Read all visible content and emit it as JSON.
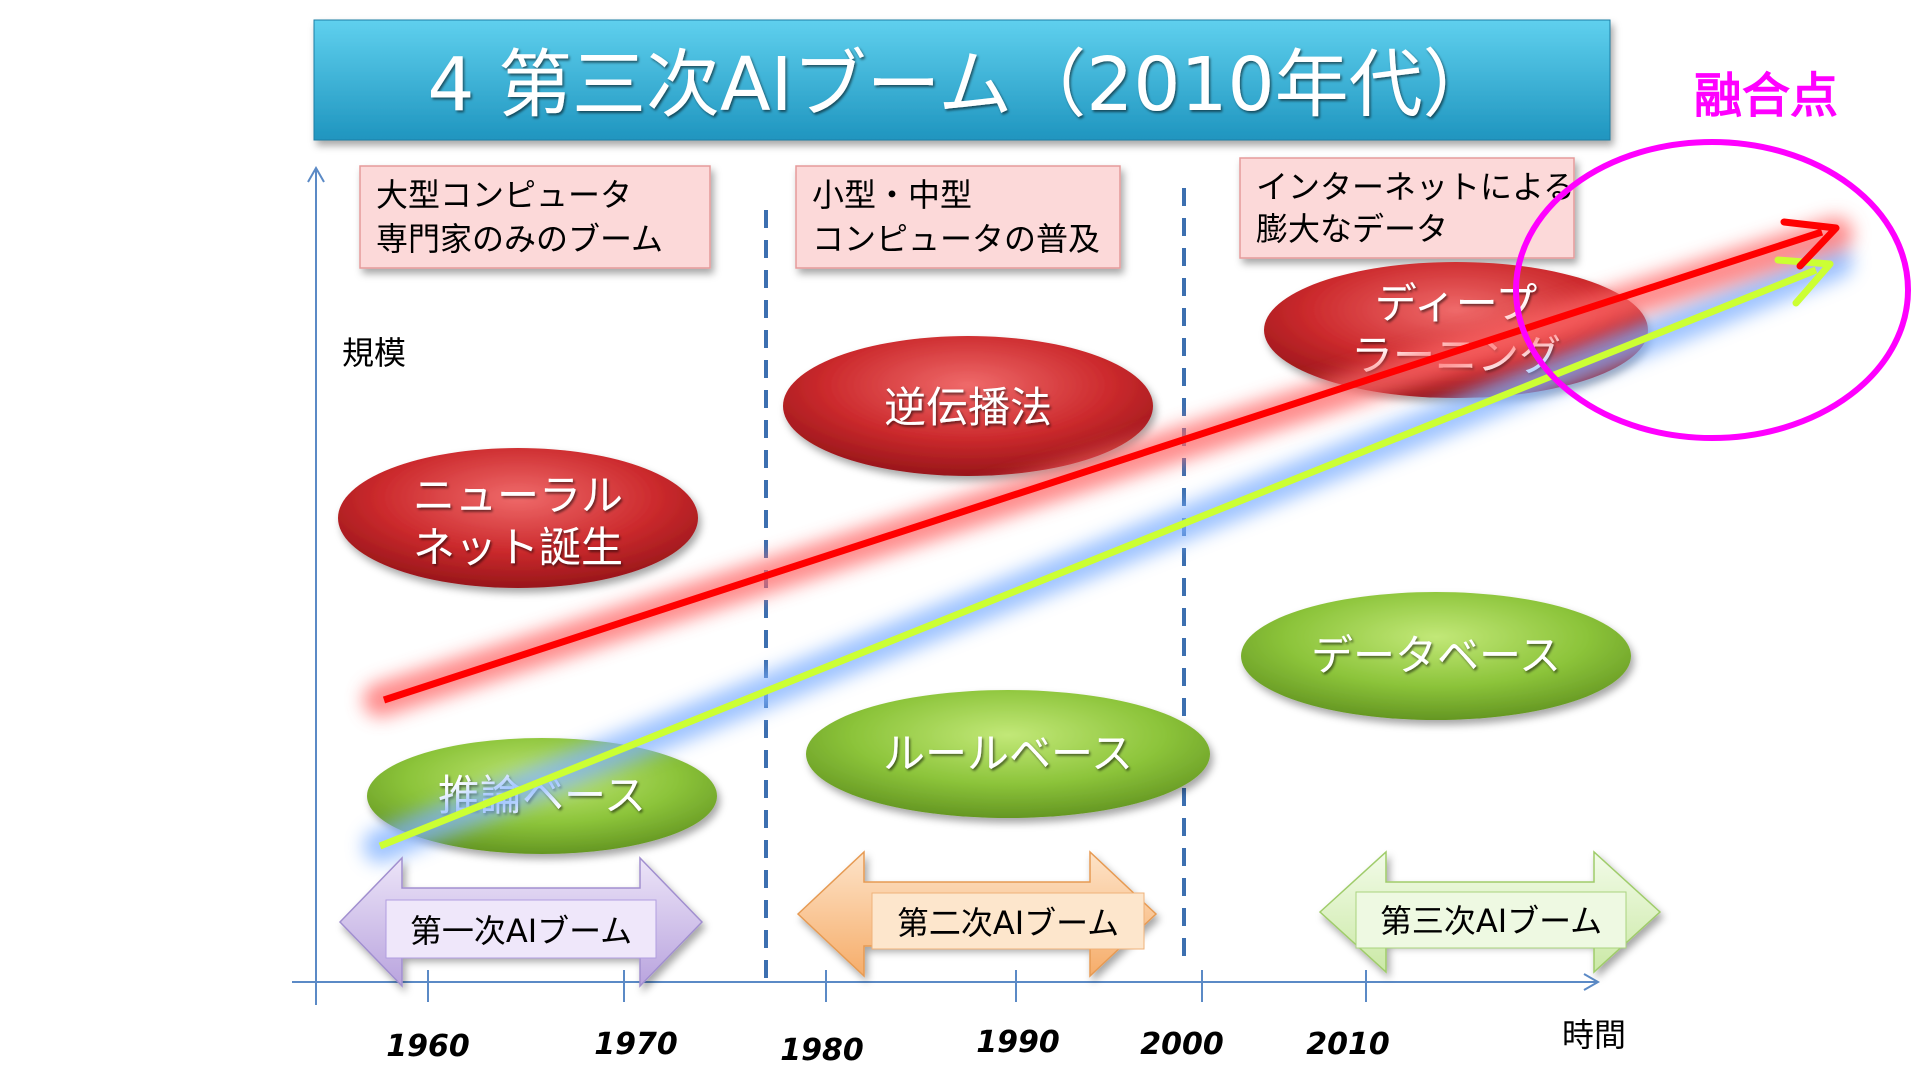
{
  "title": "4  第三次AIブーム（2010年代）",
  "axes": {
    "y_label": "規模",
    "x_label": "時間",
    "x_ticks": [
      "1960",
      "1970",
      "1980",
      "1990",
      "2000",
      "2010"
    ]
  },
  "era_notes": [
    [
      "大型コンピュータ",
      "専門家のみのブーム"
    ],
    [
      "小型・中型",
      "コンピュータの普及"
    ],
    [
      "インターネットによる",
      "膨大なデータ"
    ]
  ],
  "red_ellipses": [
    [
      "ニューラル",
      "ネット誕生"
    ],
    [
      "逆伝播法"
    ],
    [
      "ディープ",
      "ラーニング"
    ]
  ],
  "green_ellipses": [
    [
      "推論ベース"
    ],
    [
      "ルールベース"
    ],
    [
      "データベース"
    ]
  ],
  "booms": [
    "第一次AIブーム",
    "第二次AIブーム",
    "第三次AIブーム"
  ],
  "convergence_label": "融合点",
  "colors": {
    "title_bg": "#3bb5da",
    "red_ellipse": "#c8282c",
    "green_ellipse": "#8ec43c",
    "red_arrow": "#ff0000",
    "green_arrow": "#ccff33",
    "convergence": "#ff00ff",
    "boom1": "#c9b8e8",
    "boom2": "#f8c590",
    "boom3": "#dcf2c0",
    "note_bg": "#fcd9d9",
    "axis": "#5b8ac6",
    "divider": "#3c6fb0"
  }
}
